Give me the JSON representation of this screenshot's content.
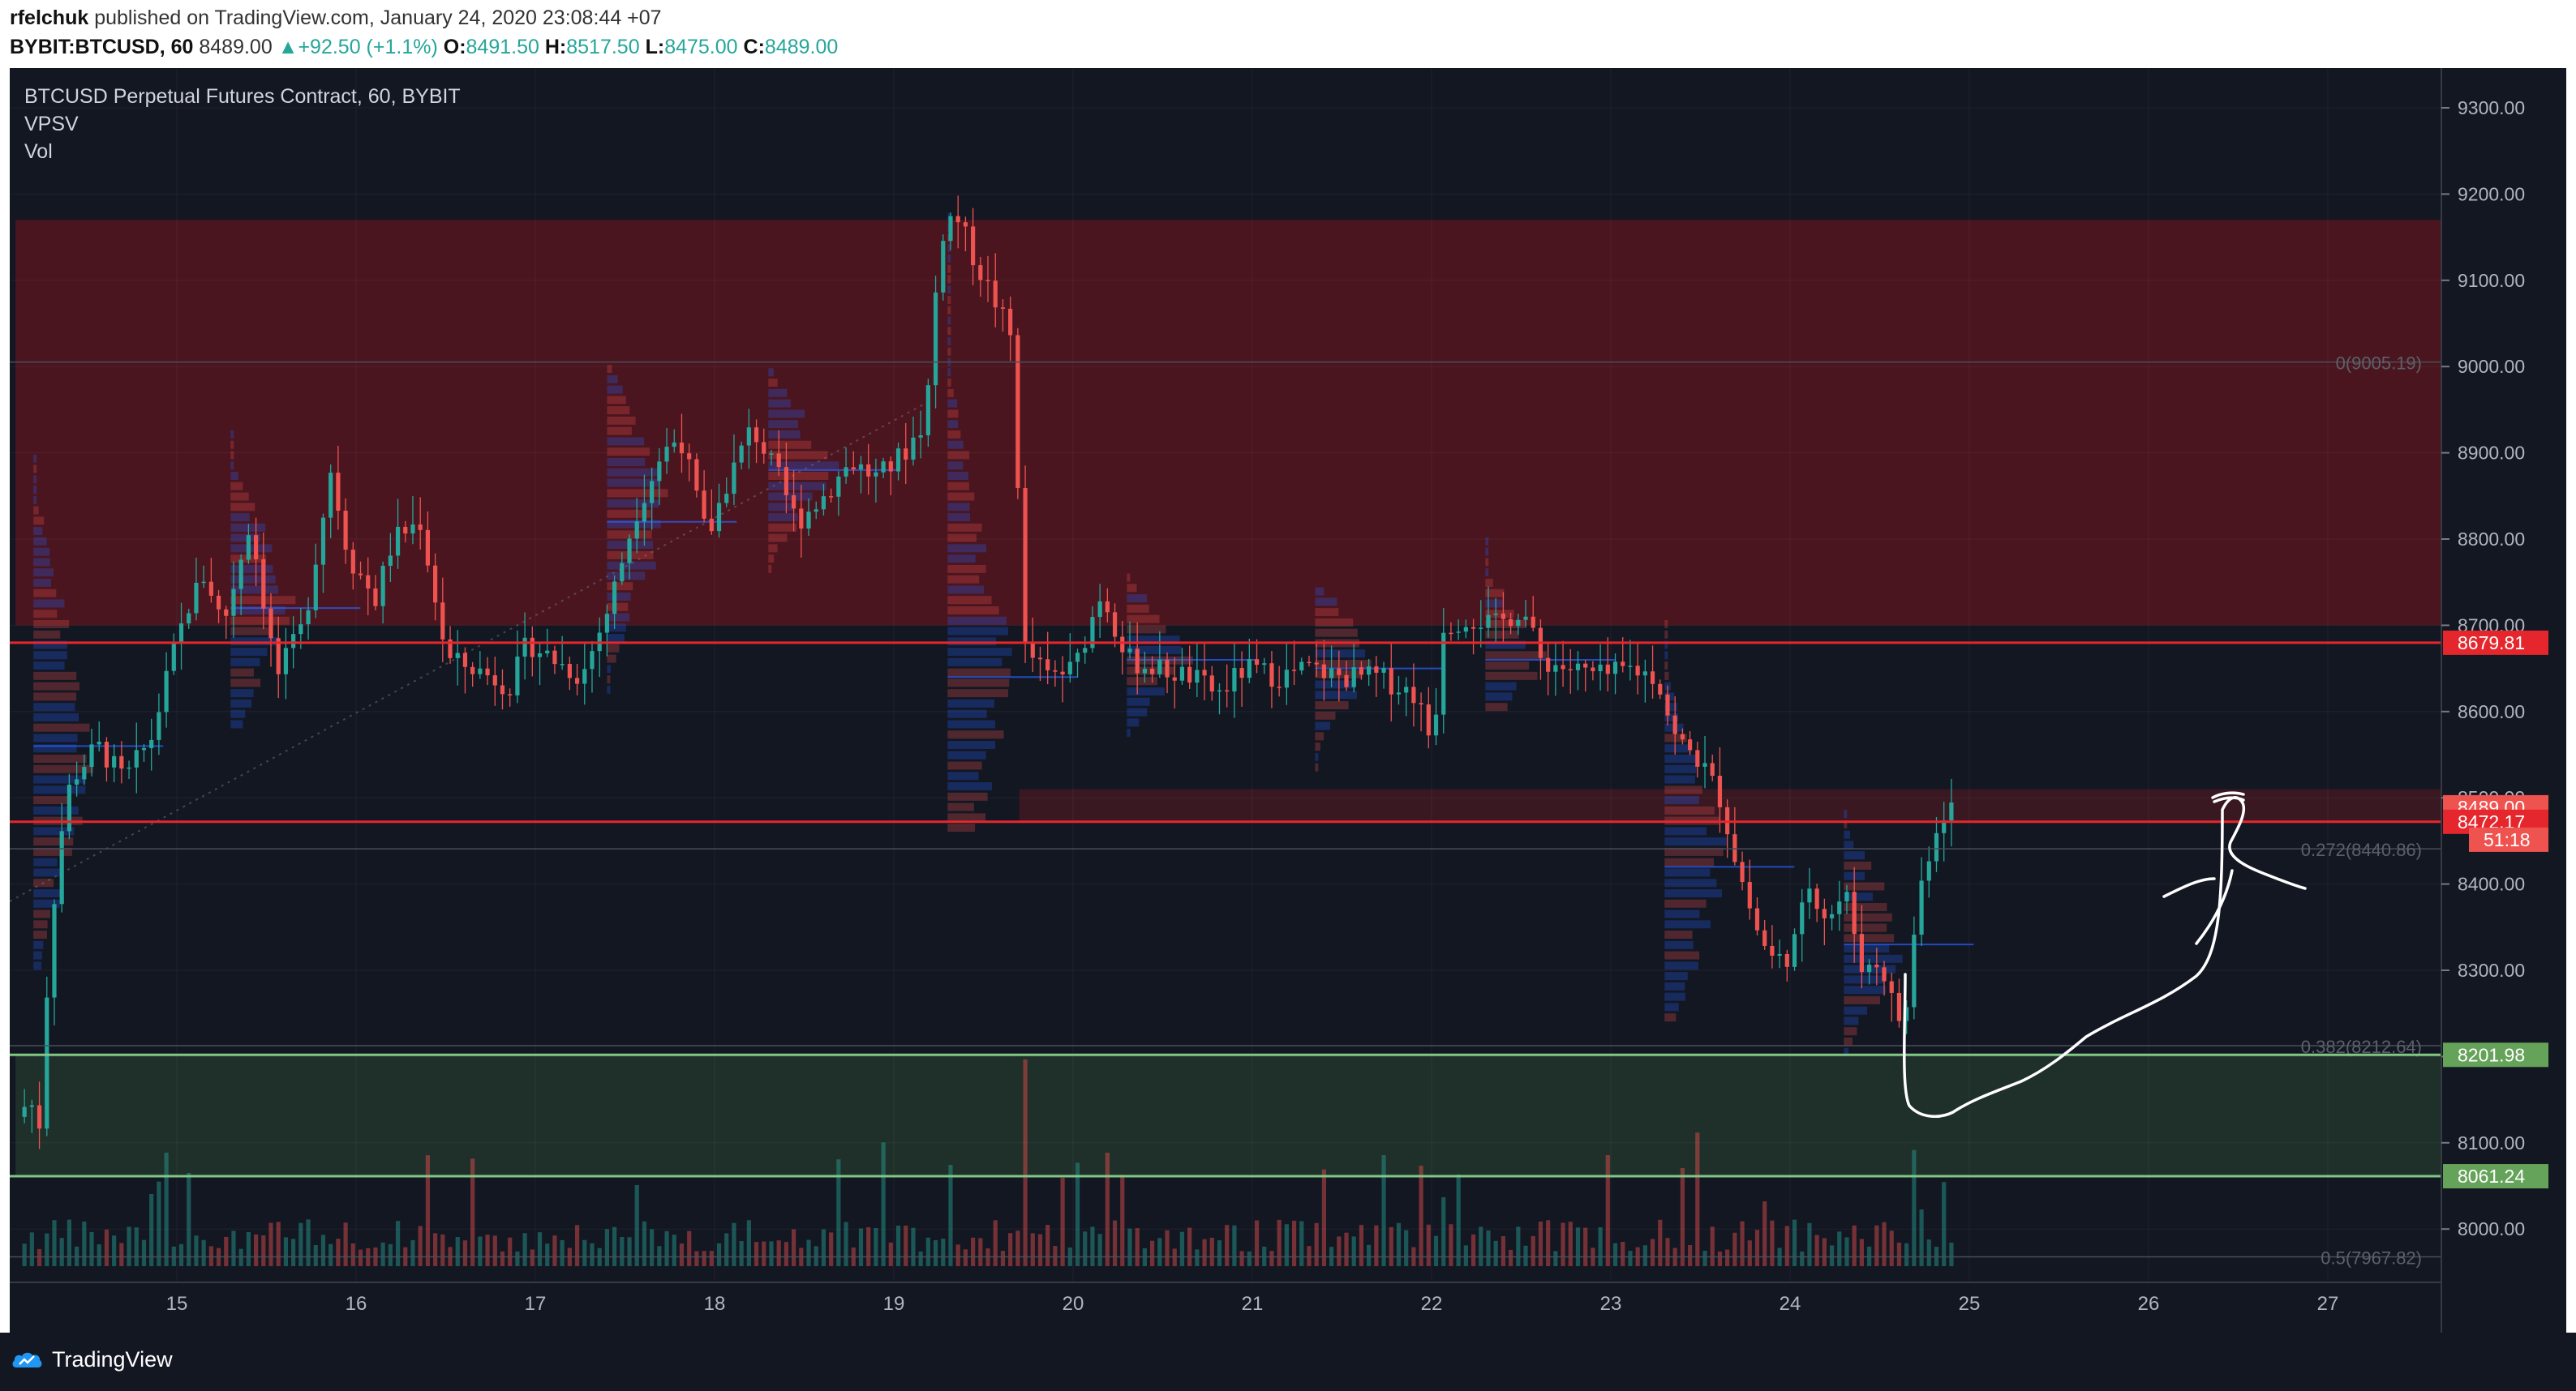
{
  "header": {
    "author": "rfelchuk",
    "published_text": "published on TradingView.com, January 24, 2020 23:08:44 +07",
    "symbol": "BYBIT:BTCUSD, 60",
    "last": "8489.00",
    "change": "+92.50 (+1.1%)",
    "o_label": "O:",
    "o_value": "8491.50",
    "h_label": "H:",
    "h_value": "8517.50",
    "l_label": "L:",
    "l_value": "8475.00",
    "c_label": "C:",
    "c_value": "8489.00"
  },
  "legend": {
    "title": "BTCUSD Perpetual Futures Contract, 60, BYBIT",
    "indicator1": "VPSV",
    "indicator2": "Vol"
  },
  "footer": {
    "brand": "TradingView"
  },
  "colors": {
    "background": "#131722",
    "up": "#26a69a",
    "down": "#ef5350",
    "resistance_zone": "#4a151e",
    "support_zone": "#1f2f2a",
    "red_line": "#e5272d",
    "green_line": "#81c784",
    "fib_line": "#4a4e5a"
  },
  "chart_data": {
    "type": "candlestick",
    "title": "BTCUSD Perpetual Futures Contract, 60, BYBIT",
    "xlabel": "",
    "ylabel": "",
    "x_ticks": [
      "15",
      "16",
      "17",
      "18",
      "19",
      "20",
      "21",
      "22",
      "23",
      "24",
      "25",
      "26",
      "27"
    ],
    "y_ticks": [
      "8000.00",
      "8100.00",
      "8200.00",
      "8300.00",
      "8400.00",
      "8500.00",
      "8600.00",
      "8700.00",
      "8800.00",
      "8900.00",
      "9000.00",
      "9100.00",
      "9200.00",
      "9300.00"
    ],
    "ylim": [
      7900,
      9330
    ],
    "xlim": [
      14.1,
      27.7
    ],
    "grid": true,
    "price_path": [
      [
        14.15,
        8130
      ],
      [
        14.22,
        8150
      ],
      [
        14.28,
        8120
      ],
      [
        14.32,
        8290
      ],
      [
        14.38,
        8440
      ],
      [
        14.45,
        8520
      ],
      [
        14.6,
        8560
      ],
      [
        14.75,
        8520
      ],
      [
        14.9,
        8570
      ],
      [
        15.0,
        8650
      ],
      [
        15.1,
        8720
      ],
      [
        15.2,
        8760
      ],
      [
        15.3,
        8700
      ],
      [
        15.45,
        8820
      ],
      [
        15.6,
        8640
      ],
      [
        15.75,
        8700
      ],
      [
        15.9,
        8880
      ],
      [
        16.0,
        8780
      ],
      [
        16.15,
        8730
      ],
      [
        16.25,
        8800
      ],
      [
        16.4,
        8820
      ],
      [
        16.55,
        8660
      ],
      [
        16.7,
        8650
      ],
      [
        16.9,
        8630
      ],
      [
        17.0,
        8680
      ],
      [
        17.15,
        8660
      ],
      [
        17.3,
        8640
      ],
      [
        17.45,
        8720
      ],
      [
        17.6,
        8830
      ],
      [
        17.75,
        8900
      ],
      [
        17.85,
        8920
      ],
      [
        18.0,
        8800
      ],
      [
        18.1,
        8860
      ],
      [
        18.25,
        8930
      ],
      [
        18.4,
        8870
      ],
      [
        18.5,
        8820
      ],
      [
        18.65,
        8850
      ],
      [
        18.8,
        8890
      ],
      [
        18.95,
        8870
      ],
      [
        19.1,
        8900
      ],
      [
        19.22,
        8940
      ],
      [
        19.3,
        9150
      ],
      [
        19.38,
        9180
      ],
      [
        19.5,
        9120
      ],
      [
        19.62,
        9070
      ],
      [
        19.72,
        9020
      ],
      [
        19.75,
        8680
      ],
      [
        19.9,
        8640
      ],
      [
        20.05,
        8650
      ],
      [
        20.2,
        8740
      ],
      [
        20.35,
        8660
      ],
      [
        20.5,
        8650
      ],
      [
        20.7,
        8640
      ],
      [
        20.85,
        8620
      ],
      [
        21.0,
        8650
      ],
      [
        21.2,
        8640
      ],
      [
        21.35,
        8650
      ],
      [
        21.55,
        8640
      ],
      [
        21.75,
        8640
      ],
      [
        21.95,
        8620
      ],
      [
        22.05,
        8560
      ],
      [
        22.1,
        8700
      ],
      [
        22.25,
        8710
      ],
      [
        22.4,
        8700
      ],
      [
        22.55,
        8720
      ],
      [
        22.65,
        8660
      ],
      [
        22.8,
        8650
      ],
      [
        23.0,
        8640
      ],
      [
        23.15,
        8650
      ],
      [
        23.3,
        8640
      ],
      [
        23.4,
        8570
      ],
      [
        23.55,
        8540
      ],
      [
        23.65,
        8500
      ],
      [
        23.75,
        8420
      ],
      [
        23.85,
        8350
      ],
      [
        23.95,
        8310
      ],
      [
        24.05,
        8320
      ],
      [
        24.15,
        8400
      ],
      [
        24.25,
        8360
      ],
      [
        24.35,
        8390
      ],
      [
        24.45,
        8300
      ],
      [
        24.55,
        8310
      ],
      [
        24.6,
        8270
      ],
      [
        24.68,
        8230
      ],
      [
        24.75,
        8380
      ],
      [
        24.82,
        8440
      ],
      [
        24.88,
        8480
      ],
      [
        24.92,
        8489
      ]
    ],
    "last_price": 8489.0,
    "countdown": "51:18",
    "price_labels": [
      {
        "value": 8679.81,
        "text": "8679.81",
        "color": "#e5272d"
      },
      {
        "value": 8489.0,
        "text": "8489.00",
        "color": "#ef5350"
      },
      {
        "value": 8472.17,
        "text": "8472.17",
        "color": "#e5272d"
      },
      {
        "value": 8201.98,
        "text": "8201.98",
        "color": "#66a35a"
      },
      {
        "value": 8061.24,
        "text": "8061.24",
        "color": "#66a35a"
      }
    ],
    "fib_levels": [
      {
        "value": 9005.19,
        "label": "0(9005.19)"
      },
      {
        "value": 8440.86,
        "label": "0.272(8440.86)"
      },
      {
        "value": 8212.64,
        "label": "0.382(8212.64)"
      },
      {
        "value": 7967.82,
        "label": "0.5(7967.82)"
      }
    ],
    "zones": [
      {
        "name": "resistance",
        "from": 8700,
        "to": 9170,
        "x_from": 14.1,
        "x_to": 27.7
      },
      {
        "name": "mid-box",
        "from": 8472.17,
        "to": 8510,
        "x_from": 19.7,
        "x_to": 27.7
      },
      {
        "name": "support",
        "from": 8061.24,
        "to": 8201.98,
        "x_from": 14.1,
        "x_to": 27.7
      }
    ],
    "horizontal_lines": [
      8679.81,
      8472.17,
      8201.98,
      8061.24
    ]
  }
}
